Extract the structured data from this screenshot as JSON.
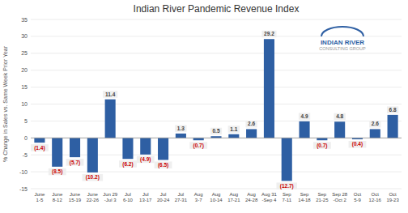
{
  "chart_data": {
    "type": "bar",
    "title": "Indian River Pandemic Revenue Index",
    "ylabel": "% Change in Sales vs. Same Week Prior Year",
    "categories": [
      "June\n1-5",
      "June\n8-12",
      "June\n15-19",
      "June\n22-26",
      "Jun 29\n-Jul 3",
      "Jul\n6-10",
      "Jul\n13-17",
      "Jul\n20-24",
      "Jul\n27-31",
      "Aug\n3-7",
      "Aug\n10-14",
      "Aug\n17-21",
      "Aug\n24-28",
      "Aug 31\n-Sep 4",
      "Sep\n7-11",
      "Sep\n14-18",
      "Sep\n21-25",
      "Sep 28\n-Oct 2",
      "Oct\n5-9",
      "Oct\n12-16",
      "Oct\n19-23"
    ],
    "values": [
      -1.4,
      -8.5,
      -5.7,
      -10.2,
      11.4,
      -6.2,
      -4.9,
      -6.5,
      1.3,
      -0.7,
      0.5,
      1.1,
      2.6,
      29.2,
      -12.7,
      4.9,
      -0.7,
      4.8,
      -0.4,
      2.6,
      6.8
    ],
    "value_labels": [
      "(1.4)",
      "(8.5)",
      "(5.7)",
      "(10.2)",
      "11.4",
      "(6.2)",
      "(4.9)",
      "(6.5)",
      "1.3",
      "(0.7)",
      "0.5",
      "1.1",
      "2.6",
      "29.2",
      "(12.7)",
      "4.9",
      "(0.7)",
      "4.8",
      "(0.4)",
      "2.6",
      "6.8"
    ],
    "color": "#2E5FA3",
    "ylim": [
      -15,
      35
    ],
    "yticks": [
      -15,
      -10,
      -5,
      0,
      5,
      10,
      15,
      20,
      25,
      30,
      35
    ],
    "grid": true,
    "data_labels": true,
    "annotations": [
      "INDIAN RIVER",
      "CONSULTING GROUP"
    ]
  }
}
